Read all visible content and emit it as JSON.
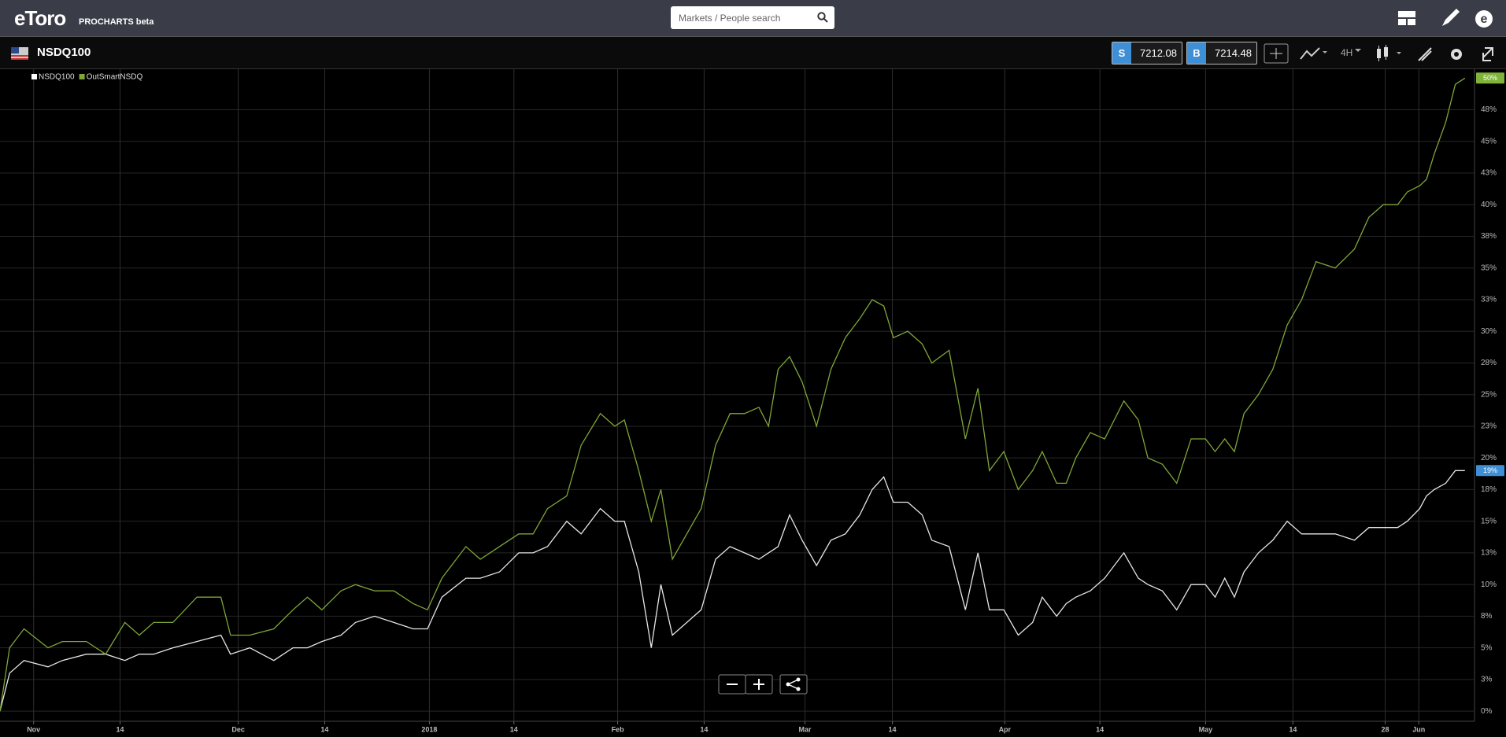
{
  "header": {
    "logo": "eToro",
    "product": "PROCHARTS beta",
    "search_placeholder": "Markets / People search"
  },
  "toolbar": {
    "instrument": "NSDQ100",
    "sell_label": "S",
    "sell_price": "7212.08",
    "buy_label": "B",
    "buy_price": "7214.48",
    "timeframe": "4H"
  },
  "chart_data": {
    "type": "line",
    "x": [
      -3.5,
      -2.5,
      -1,
      1.5,
      3,
      5.5,
      7.5,
      9.5,
      11,
      12.5,
      14.5,
      17,
      19.5,
      20.5,
      22.5,
      25,
      27,
      28.5,
      30,
      32,
      33.5,
      35.5,
      37.5,
      39.5,
      41,
      42.5,
      45,
      46.5,
      48.5,
      50.5,
      52,
      53.5,
      55.5,
      57,
      59,
      60.5,
      61.5,
      63,
      64.3,
      65.3,
      66.5,
      68,
      69.5,
      71,
      72.5,
      74,
      75.5,
      76.5,
      77.5,
      78.7,
      80,
      81.5,
      83,
      84.5,
      86,
      87.3,
      88.5,
      89.5,
      91,
      92.5,
      93.5,
      95.3,
      97,
      98.3,
      99.5,
      101,
      102.5,
      104,
      105,
      106.5,
      107.5,
      108.5,
      110,
      111.5,
      113.5,
      115,
      116,
      117.5,
      119,
      120.5,
      122,
      123,
      124,
      125,
      126,
      127.5,
      129,
      130.5,
      132,
      133.5,
      135.5,
      137.5,
      139,
      140.5,
      142,
      143,
      144.3,
      145,
      145.8,
      147,
      148,
      149
    ],
    "series": [
      {
        "name": "NSDQ100",
        "color": "#e6e6e6",
        "values": [
          0,
          3,
          4,
          3.5,
          4,
          4.5,
          4.5,
          4,
          4.5,
          4.5,
          5,
          5.5,
          6,
          4.5,
          5,
          4,
          5,
          5,
          5.5,
          6,
          7,
          7.5,
          7,
          6.5,
          6.5,
          9,
          10.5,
          10.5,
          11,
          12.5,
          12.5,
          13,
          15,
          14,
          16,
          15,
          15,
          11,
          5,
          10,
          6,
          7,
          8,
          12,
          13,
          12.5,
          12,
          12.5,
          13,
          15.5,
          13.5,
          11.5,
          13.5,
          14,
          15.5,
          17.5,
          18.5,
          16.5,
          16.5,
          15.5,
          13.5,
          13,
          8,
          12.5,
          8,
          8,
          6,
          7,
          9,
          7.5,
          8.5,
          9,
          9.5,
          10.5,
          12.5,
          10.5,
          10,
          9.5,
          8,
          10,
          10,
          9,
          10.5,
          9,
          11,
          12.5,
          13.5,
          15,
          14,
          14,
          14,
          13.5,
          14.5,
          14.5,
          14.5,
          15,
          16,
          17,
          17.5,
          18,
          19,
          19
        ],
        "value_labels": [
          null,
          null,
          null,
          null,
          null,
          null,
          null,
          null,
          null,
          null,
          null,
          null,
          null,
          null,
          null,
          null,
          null,
          null,
          null,
          null,
          null,
          null,
          null,
          null,
          null,
          null,
          null,
          null,
          null,
          null,
          null,
          null,
          null,
          null,
          null,
          null,
          null,
          null,
          null,
          null,
          null,
          null,
          null,
          null,
          null,
          null,
          null,
          null,
          null,
          null,
          null,
          null,
          null,
          null,
          null,
          null,
          null,
          null,
          null,
          null,
          null,
          null,
          null,
          null,
          null,
          null,
          null,
          null,
          null,
          null,
          null,
          null,
          null,
          null,
          null,
          null,
          null,
          null,
          null,
          null,
          null,
          null,
          null,
          null,
          null,
          null,
          null,
          null,
          null,
          null,
          null,
          null,
          null,
          null,
          null,
          null,
          null,
          null,
          null,
          null,
          null,
          "19%"
        ],
        "badge_color": "#3e8fd6"
      },
      {
        "name": "OutSmartNSDQ",
        "color": "#7fa637",
        "values": [
          0,
          5,
          6.5,
          5,
          5.5,
          5.5,
          4.5,
          7,
          6,
          7,
          7,
          9,
          9,
          6,
          6,
          6.5,
          8,
          9,
          8,
          9.5,
          10,
          9.5,
          9.5,
          8.5,
          8,
          10.5,
          13,
          12,
          13,
          14,
          14,
          16,
          17,
          21,
          23.5,
          22.5,
          23,
          19,
          15,
          17.5,
          12,
          14,
          16,
          21,
          23.5,
          23.5,
          24,
          22.5,
          27,
          28,
          26,
          22.5,
          27,
          29.5,
          31,
          32.5,
          32,
          29.5,
          30,
          29,
          27.5,
          28.5,
          21.5,
          25.5,
          19,
          20.5,
          17.5,
          19,
          20.5,
          18,
          18,
          20,
          22,
          21.5,
          24.5,
          23,
          20,
          19.5,
          18,
          21.5,
          21.5,
          20.5,
          21.5,
          20.5,
          23.5,
          25,
          27,
          30.5,
          32.5,
          35.5,
          35,
          36.5,
          39,
          40,
          40,
          41,
          41.5,
          42,
          44,
          46.5,
          49.5,
          50
        ],
        "value_labels": [
          null,
          null,
          null,
          null,
          null,
          null,
          null,
          null,
          null,
          null,
          null,
          null,
          null,
          null,
          null,
          null,
          null,
          null,
          null,
          null,
          null,
          null,
          null,
          null,
          null,
          null,
          null,
          null,
          null,
          null,
          null,
          null,
          null,
          null,
          null,
          null,
          null,
          null,
          null,
          null,
          null,
          null,
          null,
          null,
          null,
          null,
          null,
          null,
          null,
          null,
          null,
          null,
          null,
          null,
          null,
          null,
          null,
          null,
          null,
          null,
          null,
          null,
          null,
          null,
          null,
          null,
          null,
          null,
          null,
          null,
          null,
          null,
          null,
          null,
          null,
          null,
          null,
          null,
          null,
          null,
          null,
          null,
          null,
          null,
          null,
          null,
          null,
          null,
          null,
          null,
          null,
          null,
          null,
          null,
          null,
          null,
          null,
          null,
          null,
          null,
          null,
          "50%"
        ],
        "badge_color": "#7fb33a"
      }
    ],
    "xlim": [
      -3.5,
      150
    ],
    "xticks": [
      {
        "value": 0,
        "label": "Nov"
      },
      {
        "value": 9,
        "label": "14"
      },
      {
        "value": 21.3,
        "label": "Dec"
      },
      {
        "value": 30.3,
        "label": "14"
      },
      {
        "value": 41.2,
        "label": "2018"
      },
      {
        "value": 50,
        "label": "14"
      },
      {
        "value": 60.8,
        "label": "Feb"
      },
      {
        "value": 69.8,
        "label": "14"
      },
      {
        "value": 80.3,
        "label": "Mar"
      },
      {
        "value": 89.4,
        "label": "14"
      },
      {
        "value": 101.1,
        "label": "Apr"
      },
      {
        "value": 111,
        "label": "14"
      },
      {
        "value": 122,
        "label": "May"
      },
      {
        "value": 131.1,
        "label": "14"
      },
      {
        "value": 140.7,
        "label": "28"
      },
      {
        "value": 144.2,
        "label": "Jun"
      }
    ],
    "ylim": [
      -0.8,
      50.7
    ],
    "yticks": [
      {
        "value": 0,
        "label": "0%"
      },
      {
        "value": 2.5,
        "label": "3%"
      },
      {
        "value": 5,
        "label": "5%"
      },
      {
        "value": 7.5,
        "label": "8%"
      },
      {
        "value": 10,
        "label": "10%"
      },
      {
        "value": 12.5,
        "label": "13%"
      },
      {
        "value": 15,
        "label": "15%"
      },
      {
        "value": 17.5,
        "label": "18%"
      },
      {
        "value": 20,
        "label": "20%"
      },
      {
        "value": 22.5,
        "label": "23%"
      },
      {
        "value": 25,
        "label": "25%"
      },
      {
        "value": 27.5,
        "label": "28%"
      },
      {
        "value": 30,
        "label": "30%"
      },
      {
        "value": 32.5,
        "label": "33%"
      },
      {
        "value": 35,
        "label": "35%"
      },
      {
        "value": 37.5,
        "label": "38%"
      },
      {
        "value": 40,
        "label": "40%"
      },
      {
        "value": 42.5,
        "label": "43%"
      },
      {
        "value": 45,
        "label": "45%"
      },
      {
        "value": 47.5,
        "label": "48%"
      }
    ],
    "grid": true
  }
}
